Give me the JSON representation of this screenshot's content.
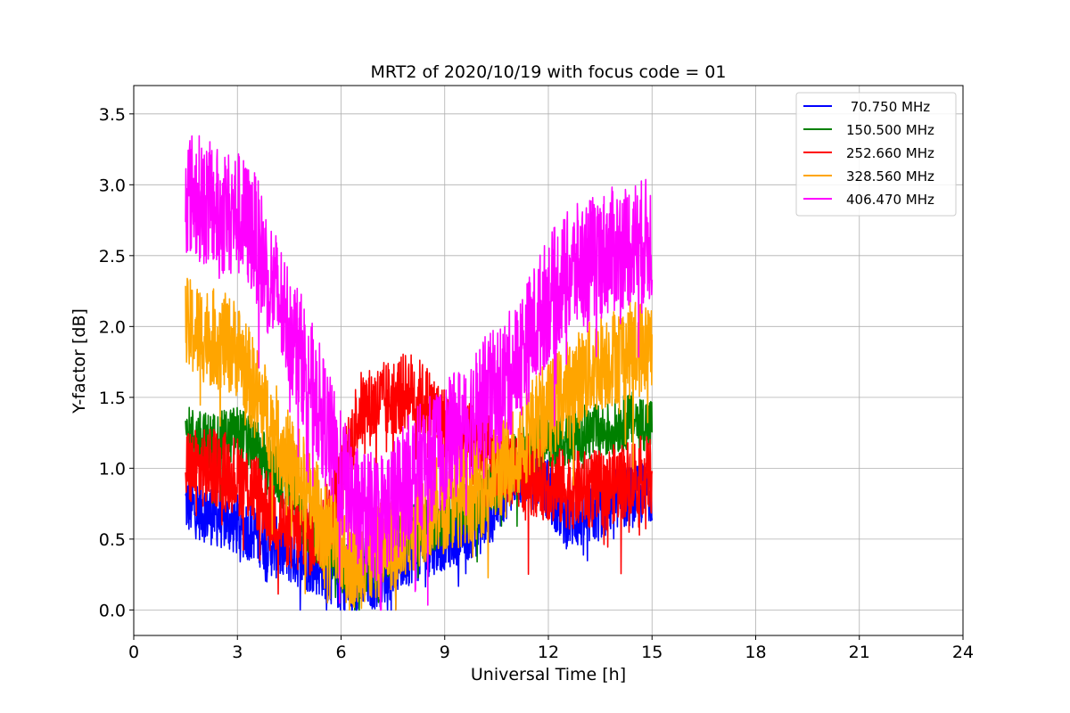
{
  "chart_data": {
    "type": "line",
    "title": "MRT2 of 2020/10/19 with focus code = 01",
    "xlabel": "Universal Time [h]",
    "ylabel": "Y-factor [dB]",
    "xlim": [
      0,
      24
    ],
    "ylim": [
      -0.18,
      3.7
    ],
    "xticks": [
      0,
      3,
      6,
      9,
      12,
      15,
      18,
      21,
      24
    ],
    "yticks": [
      0.0,
      0.5,
      1.0,
      1.5,
      2.0,
      2.5,
      3.0,
      3.5
    ],
    "ytick_labels": [
      "0.0",
      "0.5",
      "1.0",
      "1.5",
      "2.0",
      "2.5",
      "3.0",
      "3.5"
    ],
    "grid": true,
    "legend_position": "top-right",
    "series": [
      {
        "name": " 70.750 MHz",
        "color": "#0000ff",
        "x": [
          1.5,
          2.0,
          2.5,
          3.0,
          3.5,
          4.0,
          4.5,
          5.0,
          5.5,
          6.0,
          6.5,
          7.0,
          7.5,
          8.0,
          8.5,
          9.0,
          9.5,
          10.0,
          10.5,
          11.0,
          11.5,
          12.0,
          12.5,
          13.0,
          13.5,
          14.0,
          14.5,
          15.0
        ],
        "y": [
          0.75,
          0.7,
          0.65,
          0.6,
          0.55,
          0.45,
          0.4,
          0.35,
          0.3,
          0.2,
          0.2,
          0.22,
          0.3,
          0.4,
          0.45,
          0.5,
          0.55,
          0.6,
          0.75,
          0.95,
          1.0,
          0.85,
          0.65,
          0.65,
          0.7,
          0.8,
          0.8,
          0.85
        ],
        "spread": 0.22
      },
      {
        "name": "150.500 MHz",
        "color": "#008000",
        "x": [
          1.5,
          2.0,
          2.5,
          3.0,
          3.5,
          4.0,
          4.5,
          5.0,
          5.5,
          6.0,
          6.5,
          7.0,
          7.5,
          8.0,
          8.5,
          9.0,
          9.5,
          10.0,
          10.5,
          11.0,
          11.5,
          12.0,
          12.5,
          13.0,
          13.5,
          14.0,
          14.5,
          15.0
        ],
        "y": [
          1.25,
          1.2,
          1.2,
          1.25,
          1.15,
          1.0,
          0.85,
          0.6,
          0.45,
          0.3,
          0.3,
          0.35,
          0.45,
          0.55,
          0.6,
          0.65,
          0.7,
          0.75,
          0.9,
          1.05,
          1.15,
          1.2,
          1.2,
          1.25,
          1.25,
          1.3,
          1.35,
          1.3
        ],
        "spread": 0.2
      },
      {
        "name": "252.660 MHz",
        "color": "#ff0000",
        "x": [
          1.5,
          2.0,
          2.5,
          3.0,
          3.5,
          4.0,
          4.5,
          5.0,
          5.5,
          6.0,
          6.5,
          7.0,
          7.5,
          8.0,
          8.5,
          9.0,
          9.5,
          10.0,
          10.5,
          11.0,
          11.5,
          12.0,
          12.5,
          13.0,
          13.5,
          14.0,
          14.5,
          15.0
        ],
        "y": [
          1.0,
          1.0,
          1.0,
          0.95,
          0.85,
          0.7,
          0.55,
          0.5,
          0.55,
          0.9,
          1.4,
          1.45,
          1.5,
          1.55,
          1.45,
          1.3,
          1.2,
          1.15,
          1.05,
          1.0,
          0.95,
          0.9,
          0.85,
          0.85,
          0.85,
          0.9,
          0.95,
          0.95
        ],
        "spread": 0.28
      },
      {
        "name": "328.560 MHz",
        "color": "#ffa500",
        "x": [
          1.5,
          2.0,
          2.5,
          3.0,
          3.5,
          4.0,
          4.5,
          5.0,
          5.5,
          6.0,
          6.5,
          7.0,
          7.5,
          8.0,
          8.5,
          9.0,
          9.5,
          10.0,
          10.5,
          11.0,
          11.5,
          12.0,
          12.5,
          13.0,
          13.5,
          14.0,
          14.5,
          15.0
        ],
        "y": [
          2.0,
          1.95,
          1.9,
          1.85,
          1.55,
          1.3,
          1.05,
          0.85,
          0.6,
          0.4,
          0.35,
          0.4,
          0.5,
          0.6,
          0.7,
          0.75,
          0.8,
          0.85,
          0.95,
          1.1,
          1.3,
          1.4,
          1.55,
          1.65,
          1.75,
          1.8,
          1.85,
          1.85
        ],
        "spread": 0.35
      },
      {
        "name": "406.470 MHz",
        "color": "#ff00ff",
        "x": [
          1.5,
          2.0,
          2.5,
          3.0,
          3.5,
          4.0,
          4.5,
          5.0,
          5.5,
          6.0,
          6.5,
          7.0,
          7.5,
          8.0,
          8.5,
          9.0,
          9.5,
          10.0,
          10.5,
          11.0,
          11.5,
          12.0,
          12.5,
          13.0,
          13.5,
          14.0,
          14.5,
          15.0
        ],
        "y": [
          2.95,
          2.9,
          2.8,
          2.8,
          2.65,
          2.3,
          2.0,
          1.7,
          1.35,
          0.95,
          0.7,
          0.65,
          0.75,
          0.95,
          1.05,
          1.15,
          1.3,
          1.45,
          1.55,
          1.7,
          1.95,
          2.2,
          2.35,
          2.45,
          2.5,
          2.55,
          2.6,
          2.6
        ],
        "spread": 0.45
      }
    ]
  }
}
